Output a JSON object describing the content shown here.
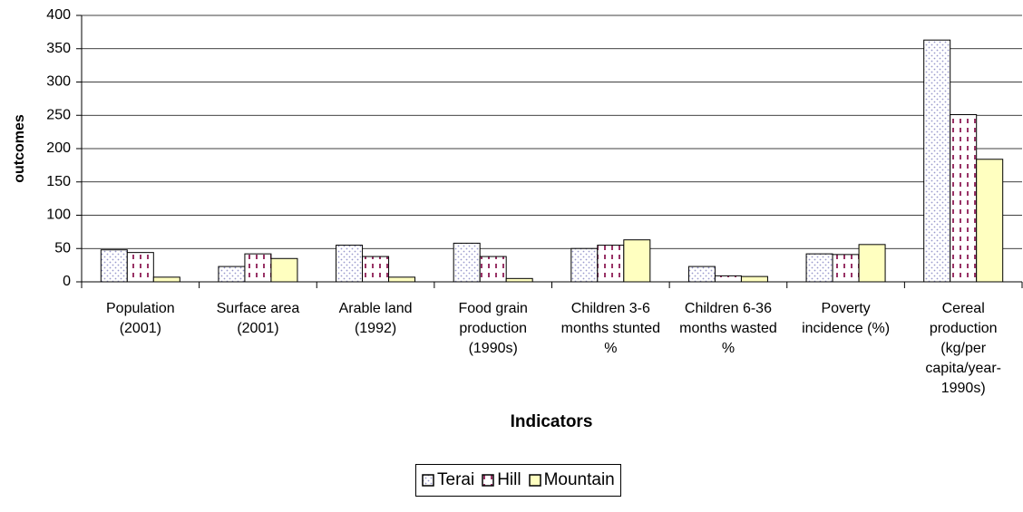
{
  "chart_data": {
    "type": "bar",
    "x_label": "Indicators",
    "y_label": "outcomes",
    "categories": [
      "Population (2001)",
      "Surface area (2001)",
      "Arable land (1992)",
      "Food grain production (1990s)",
      "Children 3-6 months stunted %",
      "Children 6-36 months wasted %",
      "Poverty incidence (%)",
      "Cereal production (kg/per capita/year-1990s)"
    ],
    "series": [
      {
        "name": "Terai",
        "color": "#9999cc",
        "values": [
          48,
          23,
          55,
          58,
          50,
          23,
          42,
          363
        ]
      },
      {
        "name": "Hill",
        "color": "#993366",
        "values": [
          44,
          42,
          38,
          38,
          55,
          9,
          41,
          251
        ]
      },
      {
        "name": "Mountain",
        "color": "#ffffc0",
        "values": [
          7,
          35,
          7,
          5,
          63,
          8,
          56,
          184
        ]
      }
    ],
    "ylim": [
      0,
      400
    ],
    "yticks": [
      0,
      50,
      100,
      150,
      200,
      250,
      300,
      350,
      400
    ],
    "grid": true,
    "legend": "bottom"
  }
}
